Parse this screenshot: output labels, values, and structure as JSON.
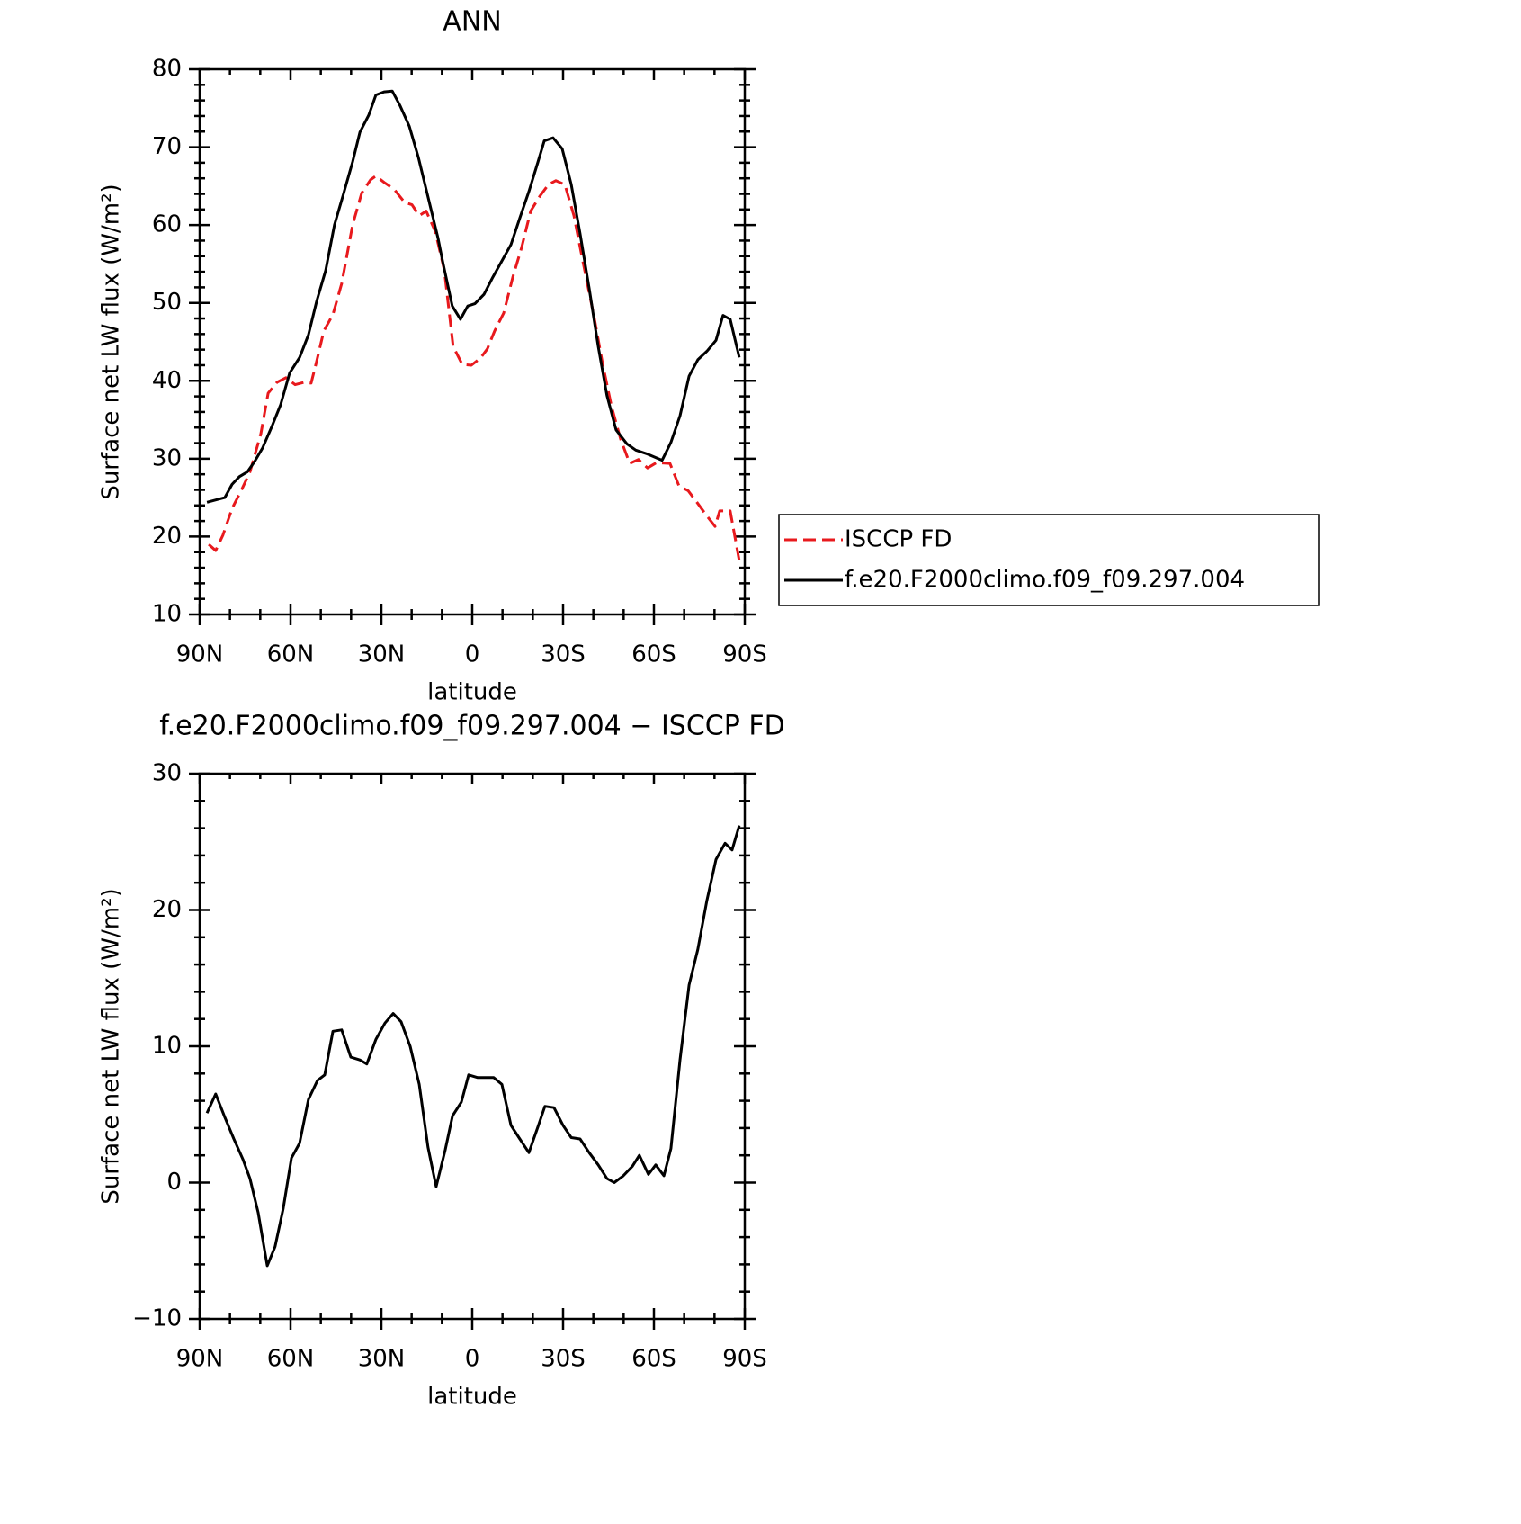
{
  "chart_data": [
    {
      "type": "line",
      "title": "ANN",
      "xlabel": "latitude",
      "ylabel": "Surface net LW flux (W/m²)",
      "xlim": [
        90,
        -90
      ],
      "xticks": [
        {
          "value": 90,
          "label": "90N"
        },
        {
          "value": 60,
          "label": "60N"
        },
        {
          "value": 30,
          "label": "30N"
        },
        0,
        {
          "value": -30,
          "label": "30S"
        },
        {
          "value": -60,
          "label": "60S"
        },
        {
          "value": -90,
          "label": "90S"
        }
      ],
      "xminor": [
        80,
        70,
        50,
        40,
        20,
        10,
        -10,
        -20,
        -40,
        -50,
        -70,
        -80
      ],
      "ylim": [
        10,
        80
      ],
      "yticks": [
        10,
        20,
        30,
        40,
        50,
        60,
        70,
        80
      ],
      "yminor": [
        12,
        14,
        16,
        18,
        22,
        24,
        26,
        28,
        32,
        34,
        36,
        38,
        42,
        44,
        46,
        48,
        52,
        54,
        56,
        58,
        62,
        64,
        66,
        68,
        72,
        74,
        76,
        78
      ],
      "legend": "right",
      "series": [
        {
          "name": "ISCCP FD",
          "color": "#e8191d",
          "dash": true,
          "x": [
            87,
            84.7,
            82.3,
            79.3,
            76.3,
            73.4,
            69.8,
            67.4,
            64.5,
            61.5,
            58.5,
            55.5,
            53.2,
            51.4,
            49,
            46,
            43.1,
            39.5,
            36.5,
            33.6,
            31.8,
            28.8,
            25.8,
            22.3,
            19.9,
            17.5,
            15.2,
            12.2,
            9.2,
            6.3,
            3.3,
            0.3,
            -2.7,
            -5,
            -7.4,
            -10.4,
            -13.4,
            -16.3,
            -19.3,
            -22.3,
            -25.2,
            -27.6,
            -30.6,
            -33.6,
            -36.5,
            -40.1,
            -43.1,
            -46,
            -49,
            -52,
            -54.9,
            -57.9,
            -60.9,
            -65.3,
            -68.3,
            -71.3,
            -74.2,
            -77.2,
            -80.2,
            -81.7,
            -85.2,
            -88.2
          ],
          "values": [
            19,
            18.2,
            20.2,
            23.6,
            25.9,
            28.3,
            33.2,
            38.4,
            39.8,
            40.4,
            39.5,
            39.8,
            39.7,
            42.5,
            46.4,
            48.5,
            52.5,
            60,
            64.1,
            65.8,
            66.3,
            65.4,
            64.6,
            62.9,
            62.6,
            61.2,
            61.8,
            59.2,
            54.2,
            44.4,
            42.1,
            42,
            42.9,
            44.1,
            46.4,
            48.7,
            53.3,
            57.1,
            61.8,
            63.7,
            65.2,
            65.7,
            65.2,
            61.2,
            55.4,
            48.5,
            42.1,
            36.7,
            32.5,
            29.4,
            29.9,
            28.8,
            29.5,
            29.4,
            26.5,
            25.9,
            24.4,
            22.8,
            21.3,
            23.3,
            23.3,
            16.9
          ]
        },
        {
          "name": "f.e20.F2000climo.f09_f09.297.004",
          "color": "#000000",
          "dash": false,
          "x": [
            87.6,
            81.7,
            79.3,
            76.9,
            74.3,
            71.9,
            69.2,
            66.2,
            63.3,
            60.3,
            57,
            54.1,
            51.4,
            48.4,
            45.5,
            42.5,
            39.5,
            37.1,
            34.2,
            31.8,
            29.1,
            26.4,
            23.8,
            20.8,
            17.8,
            14.9,
            11.3,
            9.8,
            6.6,
            3.9,
            1.5,
            -0.9,
            -3.9,
            -6.8,
            -9.8,
            -12.8,
            -15.7,
            -18.7,
            -21.7,
            -23.8,
            -26.7,
            -29.7,
            -32.7,
            -35.6,
            -38.6,
            -41.6,
            -44.5,
            -47.5,
            -51.1,
            -54,
            -57.9,
            -62.7,
            -65.6,
            -68.6,
            -71.6,
            -74.5,
            -77.5,
            -80.5,
            -82.8,
            -85.2,
            -88.2
          ],
          "values": [
            24.4,
            25,
            26.7,
            27.7,
            28.3,
            29.6,
            31.4,
            34.1,
            36.9,
            41,
            43,
            45.9,
            50.2,
            54.2,
            60,
            64,
            68.1,
            71.9,
            74.1,
            76.7,
            77.1,
            77.2,
            75.3,
            72.7,
            68.7,
            64.1,
            58.3,
            55.4,
            49.6,
            47.9,
            49.6,
            49.9,
            51.1,
            53.3,
            55.4,
            57.5,
            60.9,
            64.3,
            68.1,
            70.8,
            71.2,
            69.8,
            65.2,
            58.9,
            51.9,
            44.4,
            38.1,
            33.7,
            31.9,
            31.1,
            30.6,
            29.8,
            32.1,
            35.5,
            40.6,
            42.7,
            43.8,
            45.2,
            48.4,
            47.9,
            43
          ]
        }
      ]
    },
    {
      "type": "line",
      "title": "f.e20.F2000climo.f09_f09.297.004 − ISCCP FD",
      "xlabel": "latitude",
      "ylabel": "Surface net LW flux (W/m²)",
      "xlim": [
        90,
        -90
      ],
      "xticks": [
        {
          "value": 90,
          "label": "90N"
        },
        {
          "value": 60,
          "label": "60N"
        },
        {
          "value": 30,
          "label": "30N"
        },
        0,
        {
          "value": -30,
          "label": "30S"
        },
        {
          "value": -60,
          "label": "60S"
        },
        {
          "value": -90,
          "label": "90S"
        }
      ],
      "xminor": [
        80,
        70,
        50,
        40,
        20,
        10,
        -10,
        -20,
        -40,
        -50,
        -70,
        -80
      ],
      "ylim": [
        -10,
        30
      ],
      "yticks": [
        {
          "value": -10,
          "label": "−10"
        },
        0,
        10,
        20,
        30
      ],
      "yminor": [
        -8,
        -6,
        -4,
        -2,
        2,
        4,
        6,
        8,
        12,
        14,
        16,
        18,
        22,
        24,
        26,
        28
      ],
      "series": [
        {
          "color": "#000000",
          "dash": false,
          "x": [
            87.6,
            84.7,
            81.7,
            78.7,
            75.7,
            73.4,
            70.7,
            67.7,
            65.1,
            62.4,
            59.7,
            57,
            54.1,
            51.1,
            48.7,
            46,
            43.1,
            40.1,
            37.1,
            34.8,
            31.8,
            28.8,
            26.1,
            23.5,
            20.5,
            17.5,
            14.6,
            11.9,
            8.9,
            6.5,
            3.6,
            1.2,
            -1.8,
            -4.7,
            -7.1,
            -9.8,
            -12.8,
            -15.7,
            -18.7,
            -21.7,
            -24,
            -27,
            -30,
            -32.7,
            -35.6,
            -38.6,
            -41.6,
            -44.5,
            -46.9,
            -49.9,
            -52.9,
            -55.2,
            -58.2,
            -60.6,
            -63.3,
            -65.6,
            -68.6,
            -71.6,
            -74.5,
            -77.5,
            -80.5,
            -83.5,
            -85.8,
            -88.2
          ],
          "values": [
            5.1,
            6.5,
            4.8,
            3.2,
            1.7,
            0.3,
            -2.2,
            -6.1,
            -4.7,
            -1.9,
            1.8,
            2.9,
            6.1,
            7.5,
            7.9,
            11.1,
            11.2,
            9.2,
            9,
            8.7,
            10.5,
            11.7,
            12.4,
            11.8,
            10,
            7.2,
            2.6,
            -0.3,
            2.4,
            4.9,
            5.9,
            7.9,
            7.7,
            7.7,
            7.7,
            7.2,
            4.2,
            3.2,
            2.2,
            4.1,
            5.6,
            5.5,
            4.2,
            3.3,
            3.2,
            2.2,
            1.3,
            0.3,
            0,
            0.5,
            1.2,
            2,
            0.6,
            1.3,
            0.5,
            2.5,
            9,
            14.5,
            17.1,
            20.7,
            23.7,
            24.9,
            24.4,
            26.2
          ]
        }
      ]
    }
  ]
}
